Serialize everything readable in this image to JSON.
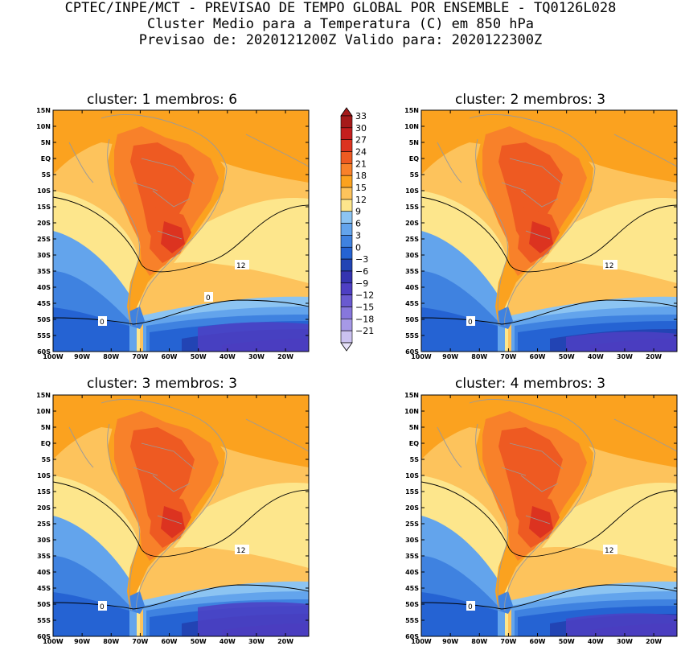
{
  "header": {
    "line1": "CPTEC/INPE/MCT - PREVISAO DE TEMPO GLOBAL POR ENSEMBLE - TQ0126L028",
    "line2": "Cluster Medio para a Temperatura (C) em 850 hPa",
    "line3": "Previsao de: 2020121200Z   Valido para: 2020122300Z"
  },
  "chart_data": {
    "type": "heatmap",
    "variable": "Temperature at 850 hPa (C)",
    "lat_labels": [
      "15N",
      "10N",
      "5N",
      "EQ",
      "5S",
      "10S",
      "15S",
      "20S",
      "25S",
      "30S",
      "35S",
      "40S",
      "45S",
      "50S",
      "55S",
      "60S"
    ],
    "lon_labels": [
      "100W",
      "90W",
      "80W",
      "70W",
      "60W",
      "50W",
      "40W",
      "30W",
      "20W"
    ],
    "lat_range": [
      -60,
      15
    ],
    "lon_range": [
      -100,
      -12
    ],
    "colorbar": {
      "levels": [
        "33",
        "30",
        "27",
        "24",
        "21",
        "18",
        "15",
        "12",
        "9",
        "6",
        "3",
        "0",
        "-3",
        "-6",
        "-9",
        "-12",
        "-15",
        "-18",
        "-21"
      ],
      "colors": [
        "#a51a1a",
        "#c41e1e",
        "#dc3320",
        "#ee5a22",
        "#f8812a",
        "#fba21f",
        "#fdc35c",
        "#fde68c",
        "#8cc4f2",
        "#63a4ec",
        "#3f82e0",
        "#2563d3",
        "#2244b4",
        "#3534b0",
        "#4e3fc3",
        "#6a5ad0",
        "#8777dc",
        "#a699e6",
        "#cbc2f0"
      ]
    },
    "panels": [
      {
        "title": "cluster: 1   membros: 6",
        "cluster": 1,
        "members": 6,
        "contour_labels": [
          "12",
          "0",
          "0"
        ]
      },
      {
        "title": "cluster: 2   membros: 3",
        "cluster": 2,
        "members": 3,
        "contour_labels": [
          "12",
          "0"
        ]
      },
      {
        "title": "cluster: 3   membros: 3",
        "cluster": 3,
        "members": 3,
        "contour_labels": [
          "12",
          "0"
        ]
      },
      {
        "title": "cluster: 4   membros: 3",
        "cluster": 4,
        "members": 3,
        "contour_labels": [
          "12",
          "0"
        ]
      }
    ]
  }
}
